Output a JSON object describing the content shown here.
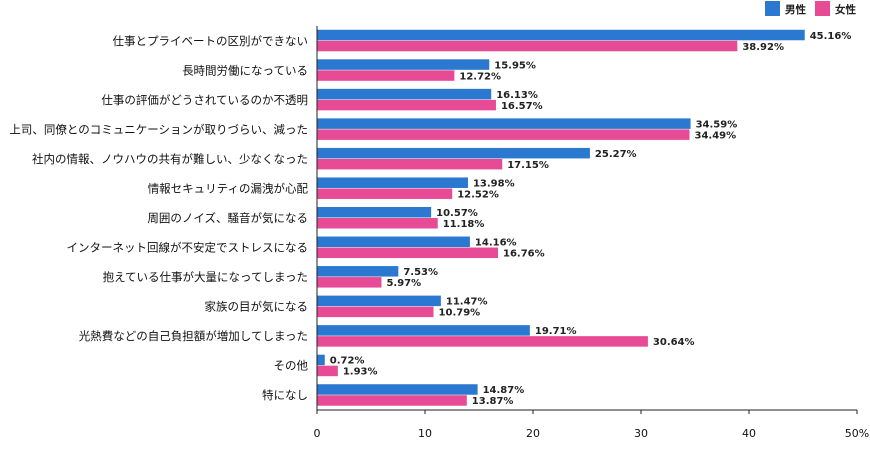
{
  "chart_data": {
    "type": "bar",
    "orientation": "horizontal",
    "categories": [
      "仕事とプライベートの区別ができない",
      "長時間労働になっている",
      "仕事の評価がどうされているのか不透明",
      "上司、同僚とのコミュニケーションが取りづらい、減った",
      "社内の情報、ノウハウの共有が難しい、少なくなった",
      "情報セキュリティの漏洩が心配",
      "周囲のノイズ、騒音が気になる",
      "インターネット回線が不安定でストレスになる",
      "抱えている仕事が大量になってしまった",
      "家族の目が気になる",
      "光熱費などの自己負担額が増加してしまった",
      "その他",
      "特になし"
    ],
    "series": [
      {
        "name": "男性",
        "color": "#2b78d0",
        "values": [
          45.16,
          15.95,
          16.13,
          34.59,
          25.27,
          13.98,
          10.57,
          14.16,
          7.53,
          11.47,
          19.71,
          0.72,
          14.87
        ]
      },
      {
        "name": "女性",
        "color": "#e84b95",
        "values": [
          38.92,
          12.72,
          16.57,
          34.49,
          17.15,
          12.52,
          11.18,
          16.76,
          5.97,
          10.79,
          30.64,
          1.93,
          13.87
        ]
      }
    ],
    "xlim": [
      0,
      50
    ],
    "xticks": [
      "0",
      "10",
      "20",
      "30",
      "40",
      "50%"
    ],
    "data_label_suffix": "%",
    "legend": "top-right",
    "grid": false
  }
}
